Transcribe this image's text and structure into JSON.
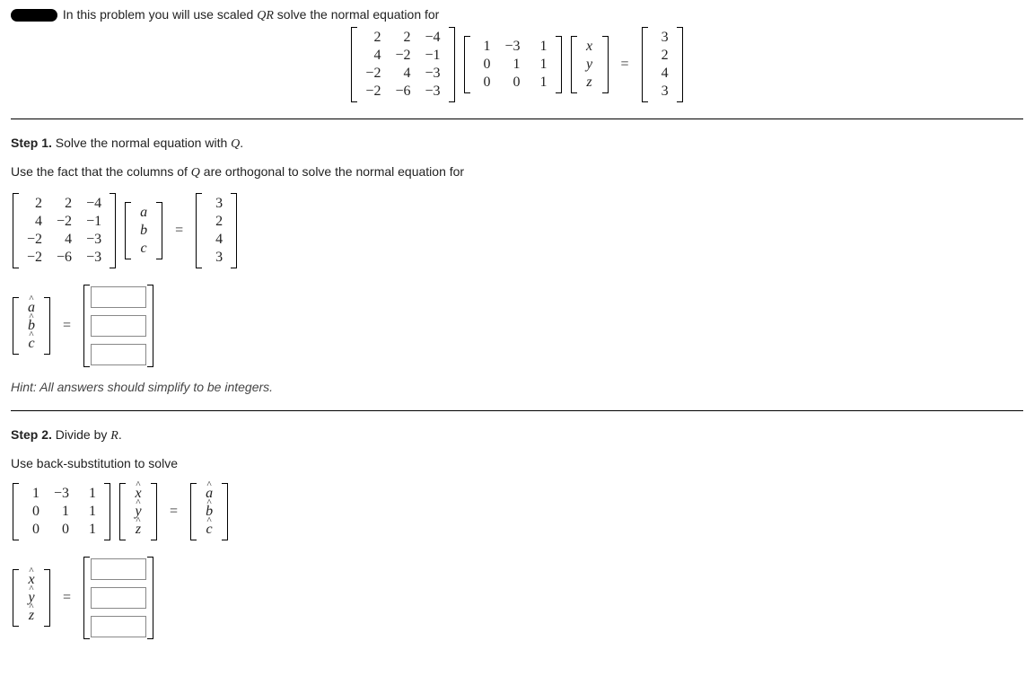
{
  "intro_text": "In this problem you will use scaled ",
  "intro_QR": "QR",
  "intro_text2": " solve the normal equation for",
  "main_eq": {
    "A": [
      [
        2,
        2,
        -4
      ],
      [
        4,
        -2,
        -1
      ],
      [
        -2,
        4,
        -3
      ],
      [
        -2,
        -6,
        -3
      ]
    ],
    "R": [
      [
        1,
        -3,
        1
      ],
      [
        0,
        1,
        1
      ],
      [
        0,
        0,
        1
      ]
    ],
    "xyz": [
      "x",
      "y",
      "z"
    ],
    "b": [
      3,
      2,
      4,
      3
    ]
  },
  "step1": {
    "title_bold": "Step 1.",
    "title_rest": " Solve the normal equation with ",
    "title_var": "Q",
    "use_text_a": "Use the fact that the columns of ",
    "use_text_b": " are orthogonal to solve the normal equation for",
    "A": [
      [
        2,
        2,
        -4
      ],
      [
        4,
        -2,
        -1
      ],
      [
        -2,
        4,
        -3
      ],
      [
        -2,
        -6,
        -3
      ]
    ],
    "abc": [
      "a",
      "b",
      "c"
    ],
    "rhs": [
      3,
      2,
      4,
      3
    ],
    "abc_hat": [
      "a",
      "b",
      "c"
    ]
  },
  "hint": "Hint: All answers should simplify to be integers.",
  "step2": {
    "title_bold": "Step 2.",
    "title_rest": " Divide by ",
    "title_var": "R",
    "use_text": "Use back-substitution to solve",
    "R": [
      [
        1,
        -3,
        1
      ],
      [
        0,
        1,
        1
      ],
      [
        0,
        0,
        1
      ]
    ],
    "xyz_hat": [
      "x",
      "y",
      "z"
    ],
    "abc_hat": [
      "a",
      "b",
      "c"
    ]
  },
  "colors": {
    "text": "#222",
    "rule": "#000",
    "input_border": "#888"
  }
}
